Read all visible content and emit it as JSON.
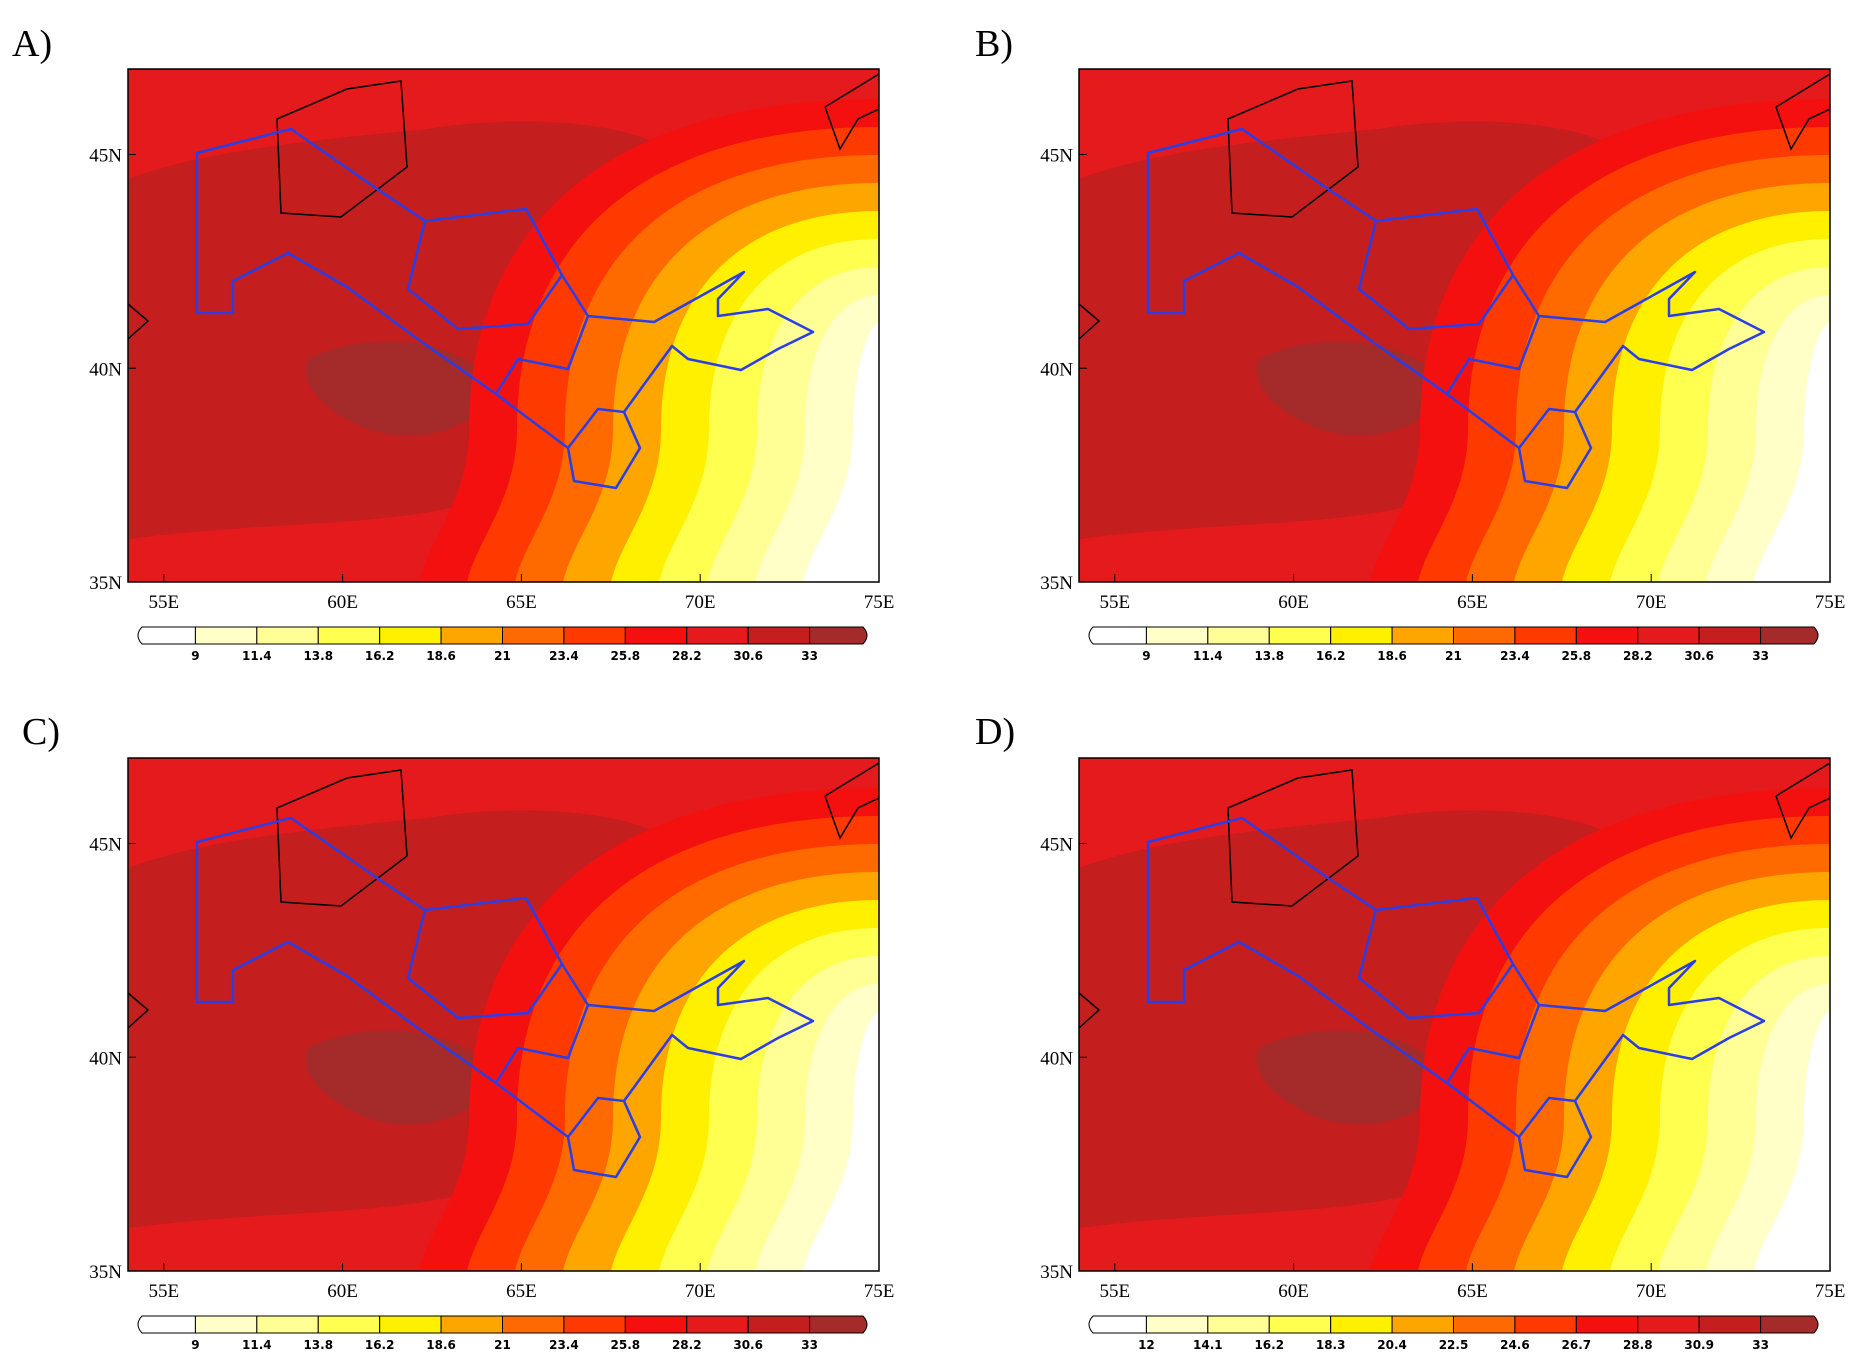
{
  "panels": [
    {
      "label": "A)",
      "xlim": [
        54,
        75
      ],
      "ylim": [
        35,
        47
      ],
      "xticks": [
        {
          "value": 55,
          "label": "55E"
        },
        {
          "value": 60,
          "label": "60E"
        },
        {
          "value": 65,
          "label": "65E"
        },
        {
          "value": 70,
          "label": "70E"
        },
        {
          "value": 75,
          "label": "75E"
        }
      ],
      "yticks": [
        {
          "value": 35,
          "label": "35N"
        },
        {
          "value": 40,
          "label": "40N"
        },
        {
          "value": 45,
          "label": "45N"
        }
      ],
      "colorbar": {
        "levels": [
          9,
          11.4,
          13.8,
          16.2,
          18.6,
          21,
          23.4,
          25.8,
          28.2,
          30.6,
          33
        ],
        "colors": [
          "#ffffff",
          "#ffffc8",
          "#ffff96",
          "#ffff50",
          "#fff000",
          "#ffa500",
          "#ff6a00",
          "#ff3a00",
          "#f51010",
          "#e41a1c",
          "#c41e1e",
          "#a52a2a"
        ]
      }
    },
    {
      "label": "B)",
      "xlim": [
        54,
        75
      ],
      "ylim": [
        35,
        47
      ],
      "xticks": [
        {
          "value": 55,
          "label": "55E"
        },
        {
          "value": 60,
          "label": "60E"
        },
        {
          "value": 65,
          "label": "65E"
        },
        {
          "value": 70,
          "label": "70E"
        },
        {
          "value": 75,
          "label": "75E"
        }
      ],
      "yticks": [
        {
          "value": 35,
          "label": "35N"
        },
        {
          "value": 40,
          "label": "40N"
        },
        {
          "value": 45,
          "label": "45N"
        }
      ],
      "colorbar": {
        "levels": [
          9,
          11.4,
          13.8,
          16.2,
          18.6,
          21,
          23.4,
          25.8,
          28.2,
          30.6,
          33
        ],
        "colors": [
          "#ffffff",
          "#ffffc8",
          "#ffff96",
          "#ffff50",
          "#fff000",
          "#ffa500",
          "#ff6a00",
          "#ff3a00",
          "#f51010",
          "#e41a1c",
          "#c41e1e",
          "#a52a2a"
        ]
      }
    },
    {
      "label": "C)",
      "xlim": [
        54,
        75
      ],
      "ylim": [
        35,
        47
      ],
      "xticks": [
        {
          "value": 55,
          "label": "55E"
        },
        {
          "value": 60,
          "label": "60E"
        },
        {
          "value": 65,
          "label": "65E"
        },
        {
          "value": 70,
          "label": "70E"
        },
        {
          "value": 75,
          "label": "75E"
        }
      ],
      "yticks": [
        {
          "value": 35,
          "label": "35N"
        },
        {
          "value": 40,
          "label": "40N"
        },
        {
          "value": 45,
          "label": "45N"
        }
      ],
      "colorbar": {
        "levels": [
          9,
          11.4,
          13.8,
          16.2,
          18.6,
          21,
          23.4,
          25.8,
          28.2,
          30.6,
          33
        ],
        "colors": [
          "#ffffff",
          "#ffffc8",
          "#ffff96",
          "#ffff50",
          "#fff000",
          "#ffa500",
          "#ff6a00",
          "#ff3a00",
          "#f51010",
          "#e41a1c",
          "#c41e1e",
          "#a52a2a"
        ]
      }
    },
    {
      "label": "D)",
      "xlim": [
        54,
        75
      ],
      "ylim": [
        35,
        47
      ],
      "xticks": [
        {
          "value": 55,
          "label": "55E"
        },
        {
          "value": 60,
          "label": "60E"
        },
        {
          "value": 65,
          "label": "65E"
        },
        {
          "value": 70,
          "label": "70E"
        },
        {
          "value": 75,
          "label": "75E"
        }
      ],
      "yticks": [
        {
          "value": 35,
          "label": "35N"
        },
        {
          "value": 40,
          "label": "40N"
        },
        {
          "value": 45,
          "label": "45N"
        }
      ],
      "colorbar": {
        "levels": [
          12,
          14.1,
          16.2,
          18.3,
          20.4,
          22.5,
          24.6,
          26.7,
          28.8,
          30.9,
          33
        ],
        "colors": [
          "#ffffff",
          "#ffffc8",
          "#ffff96",
          "#ffff50",
          "#fff000",
          "#ffa500",
          "#ff6a00",
          "#ff3a00",
          "#f51010",
          "#e41a1c",
          "#c41e1e",
          "#a52a2a"
        ]
      }
    }
  ]
}
